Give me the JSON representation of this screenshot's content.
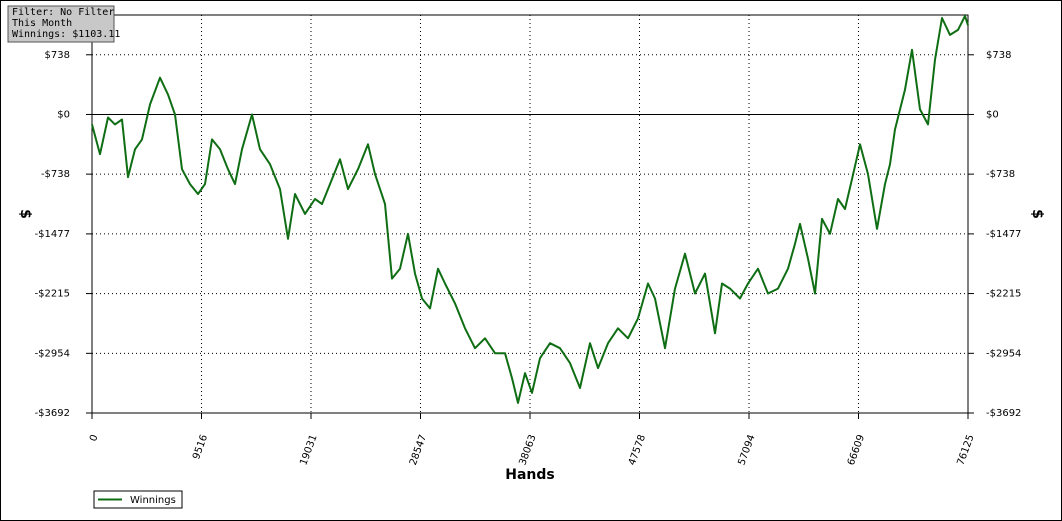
{
  "chart_data": {
    "type": "line",
    "info_box": [
      "Filter: No Filter",
      "This Month",
      "Winnings: $1103.11"
    ],
    "xlabel": "Hands",
    "ylabel": "$",
    "x": [
      0,
      695,
      1390,
      1999,
      2607,
      3128,
      3737,
      4345,
      5040,
      5909,
      6604,
      7213,
      7821,
      8516,
      9211,
      9820,
      10428,
      11123,
      11818,
      12427,
      13035,
      13904,
      14599,
      15468,
      16337,
      17033,
      17641,
      18510,
      19379,
      19987,
      20682,
      21551,
      22246,
      23115,
      23984,
      24593,
      25462,
      26070,
      26765,
      27460,
      28069,
      28677,
      29372,
      30067,
      30676,
      31545,
      32414,
      33283,
      34152,
      35021,
      35890,
      36498,
      37019,
      37628,
      38236,
      38931,
      39800,
      40669,
      41538,
      42407,
      43276,
      43971,
      44840,
      45709,
      46578,
      47447,
      48316,
      48925,
      49794,
      50663,
      51532,
      52401,
      53270,
      54139,
      54747,
      55442,
      56311,
      57006,
      57875,
      58744,
      59613,
      60482,
      61091,
      61525,
      62220,
      62829,
      63437,
      64132,
      64827,
      65436,
      66044,
      66739,
      67434,
      68217,
      68912,
      69346,
      69781,
      70650,
      71258,
      71953,
      72648,
      73257,
      73865,
      74560,
      75255,
      75864,
      76125
    ],
    "series": [
      {
        "name": "Winnings",
        "color": "#0f6e14",
        "values": [
          -123,
          -492,
          -37,
          -123,
          -62,
          -775,
          -431,
          -308,
          123,
          455,
          246,
          0,
          -677,
          -861,
          -984,
          -861,
          -308,
          -431,
          -677,
          -861,
          -431,
          0,
          -431,
          -615,
          -923,
          -1538,
          -984,
          -1230,
          -1046,
          -1107,
          -861,
          -554,
          -923,
          -677,
          -369,
          -738,
          -1107,
          -2030,
          -1907,
          -1476,
          -1968,
          -2276,
          -2399,
          -1907,
          -2091,
          -2337,
          -2645,
          -2891,
          -2768,
          -2952,
          -2952,
          -3260,
          -3567,
          -3198,
          -3444,
          -3014,
          -2829,
          -2891,
          -3075,
          -3383,
          -2829,
          -3137,
          -2829,
          -2645,
          -2768,
          -2522,
          -2091,
          -2276,
          -2891,
          -2153,
          -1722,
          -2214,
          -1968,
          -2706,
          -2091,
          -2153,
          -2276,
          -2091,
          -1907,
          -2214,
          -2153,
          -1907,
          -1599,
          -1353,
          -1784,
          -2214,
          -1292,
          -1476,
          -1046,
          -1169,
          -800,
          -369,
          -738,
          -1415,
          -861,
          -615,
          -185,
          308,
          800,
          62,
          -123,
          677,
          1193,
          984,
          1046,
          1218,
          1103
        ]
      }
    ],
    "xlim": [
      0,
      76125
    ],
    "xticks": [
      0,
      9516,
      19031,
      28547,
      38063,
      47578,
      57094,
      66609,
      76125
    ],
    "ylim": [
      -3692,
      1230
    ],
    "yticks": [
      {
        "value": 738,
        "label": "$738"
      },
      {
        "value": 0,
        "label": "$0"
      },
      {
        "value": -738,
        "label": "-$738"
      },
      {
        "value": -1477,
        "label": "-$1477"
      },
      {
        "value": -2215,
        "label": "-$2215"
      },
      {
        "value": -2954,
        "label": "-$2954"
      },
      {
        "value": -3692,
        "label": "-$3692"
      }
    ],
    "grid": true,
    "legend": "bottom-left"
  }
}
